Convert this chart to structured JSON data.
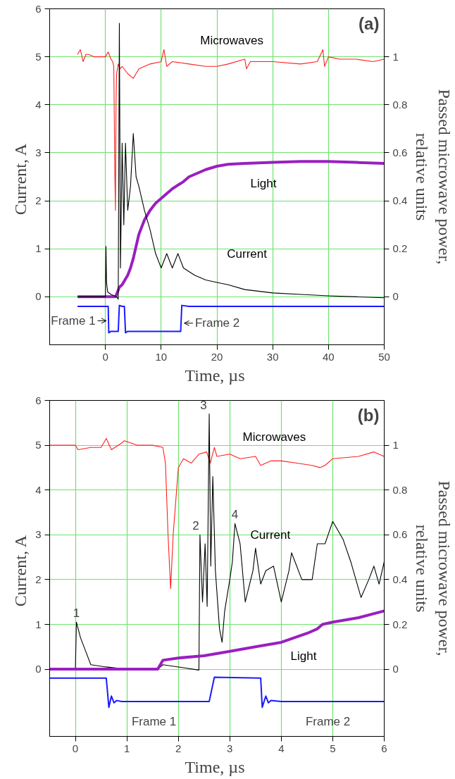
{
  "chart_data": [
    {
      "type": "line",
      "xlabel": "Time,  µs",
      "ylabel": "Current,  A",
      "y2label": "Passed microwave power,\nrelative units",
      "xlim": [
        -10,
        50
      ],
      "xticks": [
        0,
        10,
        20,
        30,
        40,
        50
      ],
      "ylim": [
        -1,
        6
      ],
      "yticks": [
        0,
        1,
        2,
        3,
        4,
        5,
        6
      ],
      "y2lim": [
        -0.2,
        1.2
      ],
      "y2ticks": [
        0,
        0.2,
        0.4,
        0.6,
        0.8,
        1
      ],
      "grid": true,
      "annotations": [
        "(a)",
        {
          "text": "Frame 1",
          "x": 0.4,
          "y": -0.5
        },
        {
          "text": "Frame 2",
          "x": 13.9,
          "y": -0.55
        }
      ],
      "series": [
        {
          "name": "Microwaves",
          "color": "#ff2020",
          "axis": "y2",
          "x": [
            -5,
            -4.5,
            -4,
            -3.5,
            -3,
            -2,
            -1,
            0,
            0.5,
            1,
            1.3,
            1.5,
            1.7,
            1.8,
            1.9,
            2.0,
            2.3,
            2.6,
            3,
            4,
            5,
            5.5,
            6,
            7,
            8,
            10,
            10.5,
            11,
            12,
            15,
            18,
            20,
            22,
            25,
            25.3,
            26,
            30,
            35,
            38,
            39,
            39.3,
            40,
            42,
            45,
            48,
            50
          ],
          "values": [
            1.01,
            1.03,
            0.98,
            1.01,
            1.01,
            1.0,
            1.0,
            1.0,
            1.02,
            0.99,
            0.98,
            0.96,
            0.5,
            0.36,
            0.8,
            0.93,
            0.97,
            0.95,
            0.96,
            0.93,
            0.91,
            0.93,
            0.95,
            0.96,
            0.97,
            0.98,
            1.03,
            0.96,
            0.98,
            0.97,
            0.96,
            0.96,
            0.97,
            0.99,
            0.95,
            0.98,
            0.98,
            0.97,
            0.98,
            1.03,
            0.96,
            1.0,
            0.99,
            0.99,
            0.98,
            0.99
          ]
        },
        {
          "name": "Light",
          "color": "#9a1fc0",
          "x": [
            -5,
            -2,
            0,
            1,
            1.8,
            2,
            2.5,
            3,
            3.5,
            4,
            4.5,
            5,
            5.5,
            6,
            7,
            8,
            9,
            10,
            12,
            14,
            15,
            18,
            20,
            22,
            25,
            30,
            35,
            40,
            45,
            50
          ],
          "values": [
            0,
            0,
            0,
            0,
            0,
            0.05,
            0.2,
            0.25,
            0.35,
            0.45,
            0.6,
            0.8,
            1.05,
            1.3,
            1.6,
            1.8,
            1.95,
            2.05,
            2.25,
            2.4,
            2.5,
            2.65,
            2.72,
            2.76,
            2.78,
            2.8,
            2.82,
            2.82,
            2.8,
            2.78
          ]
        },
        {
          "name": "Current",
          "color": "#000000",
          "x": [
            -5,
            -2,
            0,
            0.1,
            0.2,
            0.4,
            1,
            2,
            2.3,
            2.5,
            2.7,
            3,
            3.3,
            3.6,
            4,
            4.5,
            5,
            5.5,
            6,
            7,
            8,
            9,
            10,
            11,
            12,
            13,
            14,
            16,
            18,
            20,
            22,
            25,
            30,
            35,
            40,
            45,
            50
          ],
          "values": [
            0,
            0,
            0,
            1.05,
            0.3,
            0.1,
            0.05,
            0,
            -0.05,
            5.7,
            0.6,
            3.2,
            1.5,
            3.2,
            1.8,
            2.3,
            3.4,
            2.5,
            2.3,
            1.8,
            1.4,
            0.9,
            0.6,
            0.9,
            0.6,
            0.9,
            0.6,
            0.45,
            0.35,
            0.3,
            0.25,
            0.15,
            0.08,
            0.05,
            0.02,
            0,
            -0.02
          ]
        },
        {
          "color": "#1a1aff",
          "x": [
            -5,
            0.5,
            0.6,
            1,
            2.3,
            2.5,
            3,
            3.4,
            3.6,
            4,
            13.5,
            13.7,
            15,
            50
          ],
          "values": [
            -0.2,
            -0.2,
            -0.75,
            -0.72,
            -0.72,
            -0.18,
            -0.2,
            -0.2,
            -0.75,
            -0.72,
            -0.72,
            -0.18,
            -0.2,
            -0.2
          ]
        }
      ]
    },
    {
      "type": "line",
      "xlabel": "Time,  µs",
      "ylabel": "Current,  A",
      "y2label": "Passed microwave power,\nrelative units",
      "xlim": [
        -0.5,
        6
      ],
      "xticks": [
        0,
        1,
        2,
        3,
        4,
        5,
        6
      ],
      "ylim": [
        -1.5,
        6
      ],
      "yticks": [
        0,
        1,
        2,
        3,
        4,
        5,
        6
      ],
      "y2lim": [
        -0.3,
        1.2
      ],
      "y2ticks": [
        0,
        0.2,
        0.4,
        0.6,
        0.8,
        1
      ],
      "grid": true,
      "annotations": [
        "(b)",
        {
          "text": "1",
          "x": 0.02,
          "y": 1.05
        },
        {
          "text": "2",
          "x": 2.42,
          "y": 3.0
        },
        {
          "text": "3",
          "x": 2.6,
          "y": 5.7
        },
        {
          "text": "4",
          "x": 3.1,
          "y": 3.25
        },
        "Frame 1",
        "Frame 2"
      ],
      "series": [
        {
          "name": "Microwaves",
          "color": "#ff2020",
          "axis": "y2",
          "x": [
            -0.5,
            0,
            0.05,
            0.3,
            0.5,
            0.6,
            0.7,
            0.9,
            0.95,
            1.2,
            1.5,
            1.7,
            1.75,
            1.8,
            1.85,
            1.9,
            2.0,
            2.1,
            2.25,
            2.4,
            2.55,
            2.62,
            2.7,
            2.75,
            3.0,
            3.2,
            3.5,
            3.6,
            3.8,
            4.0,
            4.3,
            4.6,
            4.75,
            4.85,
            5.0,
            5.5,
            5.8,
            6.0
          ],
          "values": [
            1.0,
            1.0,
            0.98,
            0.99,
            0.99,
            1.03,
            0.98,
            1.01,
            1.02,
            1.0,
            1.0,
            0.99,
            0.92,
            0.6,
            0.36,
            0.6,
            0.9,
            0.94,
            0.92,
            0.96,
            0.97,
            0.92,
            0.99,
            0.95,
            0.96,
            0.94,
            0.95,
            0.91,
            0.93,
            0.93,
            0.92,
            0.91,
            0.9,
            0.91,
            0.94,
            0.95,
            0.97,
            0.95
          ]
        },
        {
          "name": "Current",
          "color": "#000000",
          "x": [
            -0.5,
            0,
            0.02,
            0.1,
            0.2,
            0.3,
            0.6,
            1.0,
            1.6,
            1.7,
            2.0,
            2.4,
            2.42,
            2.47,
            2.52,
            2.56,
            2.6,
            2.63,
            2.67,
            2.72,
            2.8,
            2.85,
            2.9,
            3.0,
            3.05,
            3.1,
            3.2,
            3.3,
            3.45,
            3.5,
            3.6,
            3.7,
            3.85,
            4.0,
            4.15,
            4.2,
            4.4,
            4.6,
            4.7,
            4.85,
            5.0,
            5.2,
            5.35,
            5.55,
            5.7,
            5.8,
            5.9,
            6.0
          ],
          "values": [
            0,
            0,
            1.05,
            0.7,
            0.4,
            0.1,
            0.05,
            0,
            0,
            0.1,
            0.05,
            -0.02,
            3.0,
            1.5,
            2.8,
            1.4,
            5.7,
            2.3,
            4.3,
            2.2,
            0.9,
            0.6,
            1.3,
            2.0,
            2.4,
            3.25,
            2.8,
            1.5,
            2.2,
            2.7,
            1.9,
            2.2,
            2.3,
            1.5,
            2.2,
            2.6,
            2.0,
            2.0,
            2.8,
            2.8,
            3.3,
            2.9,
            2.4,
            1.6,
            2.0,
            2.3,
            1.9,
            2.4
          ]
        },
        {
          "name": "Light",
          "color": "#9a1fc0",
          "x": [
            -0.5,
            1.0,
            1.6,
            1.7,
            2.0,
            2.5,
            3.0,
            3.5,
            4.0,
            4.5,
            4.7,
            4.8,
            5.0,
            5.5,
            6.0
          ],
          "values": [
            0,
            0,
            0,
            0.2,
            0.25,
            0.3,
            0.4,
            0.5,
            0.6,
            0.8,
            0.9,
            1.0,
            1.05,
            1.15,
            1.3
          ]
        },
        {
          "color": "#1a1aff",
          "x": [
            -0.5,
            0.6,
            0.65,
            0.7,
            0.75,
            0.8,
            0.9,
            2.6,
            2.7,
            3.6,
            3.63,
            3.7,
            3.75,
            3.8,
            4.0,
            6.0
          ],
          "values": [
            -0.2,
            -0.2,
            -0.85,
            -0.6,
            -0.75,
            -0.7,
            -0.72,
            -0.72,
            -0.18,
            -0.2,
            -0.85,
            -0.6,
            -0.75,
            -0.7,
            -0.72,
            -0.72
          ]
        }
      ]
    }
  ]
}
